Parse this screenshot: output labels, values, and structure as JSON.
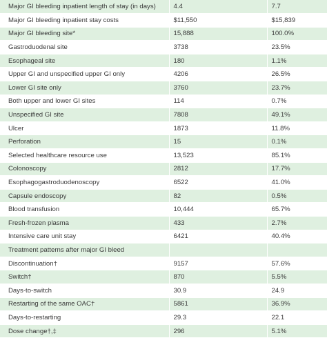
{
  "rows": [
    {
      "label": "Major GI bleeding inpatient length of stay (in days)",
      "value": "4.4",
      "pct": "7.7"
    },
    {
      "label": "Major GI bleeding inpatient stay costs",
      "value": "$11,550",
      "pct": "$15,839"
    },
    {
      "label": "Major GI bleeding site*",
      "value": "15,888",
      "pct": "100.0%"
    },
    {
      "label": "Gastroduodenal site",
      "value": "3738",
      "pct": "23.5%"
    },
    {
      "label": "Esophageal site",
      "value": "180",
      "pct": "1.1%"
    },
    {
      "label": "Upper GI and unspecified upper GI only",
      "value": "4206",
      "pct": "26.5%"
    },
    {
      "label": "Lower GI site only",
      "value": "3760",
      "pct": "23.7%"
    },
    {
      "label": "Both upper and lower GI sites",
      "value": "114",
      "pct": "0.7%"
    },
    {
      "label": "Unspecified GI site",
      "value": "7808",
      "pct": "49.1%"
    },
    {
      "label": "Ulcer",
      "value": "1873",
      "pct": "11.8%"
    },
    {
      "label": "Perforation",
      "value": "15",
      "pct": "0.1%"
    },
    {
      "label": "Selected healthcare resource use",
      "value": "13,523",
      "pct": "85.1%"
    },
    {
      "label": "Colonoscopy",
      "value": "2812",
      "pct": "17.7%"
    },
    {
      "label": "Esophagogastroduodenoscopy",
      "value": "6522",
      "pct": "41.0%"
    },
    {
      "label": "Capsule endoscopy",
      "value": "82",
      "pct": "0.5%"
    },
    {
      "label": "Blood transfusion",
      "value": "10,444",
      "pct": "65.7%"
    },
    {
      "label": "Fresh-frozen plasma",
      "value": "433",
      "pct": "2.7%"
    },
    {
      "label": "Intensive care unit stay",
      "value": "6421",
      "pct": "40.4%"
    },
    {
      "label": "Treatment patterns after major GI bleed",
      "value": "",
      "pct": ""
    },
    {
      "label": "Discontinuation†",
      "value": "9157",
      "pct": "57.6%"
    },
    {
      "label": "Switch†",
      "value": "870",
      "pct": "5.5%"
    },
    {
      "label": "Days-to-switch",
      "value": "30.9",
      "pct": "24.9"
    },
    {
      "label": "Restarting of the same OAC†",
      "value": "5861",
      "pct": "36.9%"
    },
    {
      "label": "Days-to-restarting",
      "value": "29.3",
      "pct": "22.1"
    },
    {
      "label": "Dose change†,‡",
      "value": "296",
      "pct": "5.1%"
    }
  ]
}
